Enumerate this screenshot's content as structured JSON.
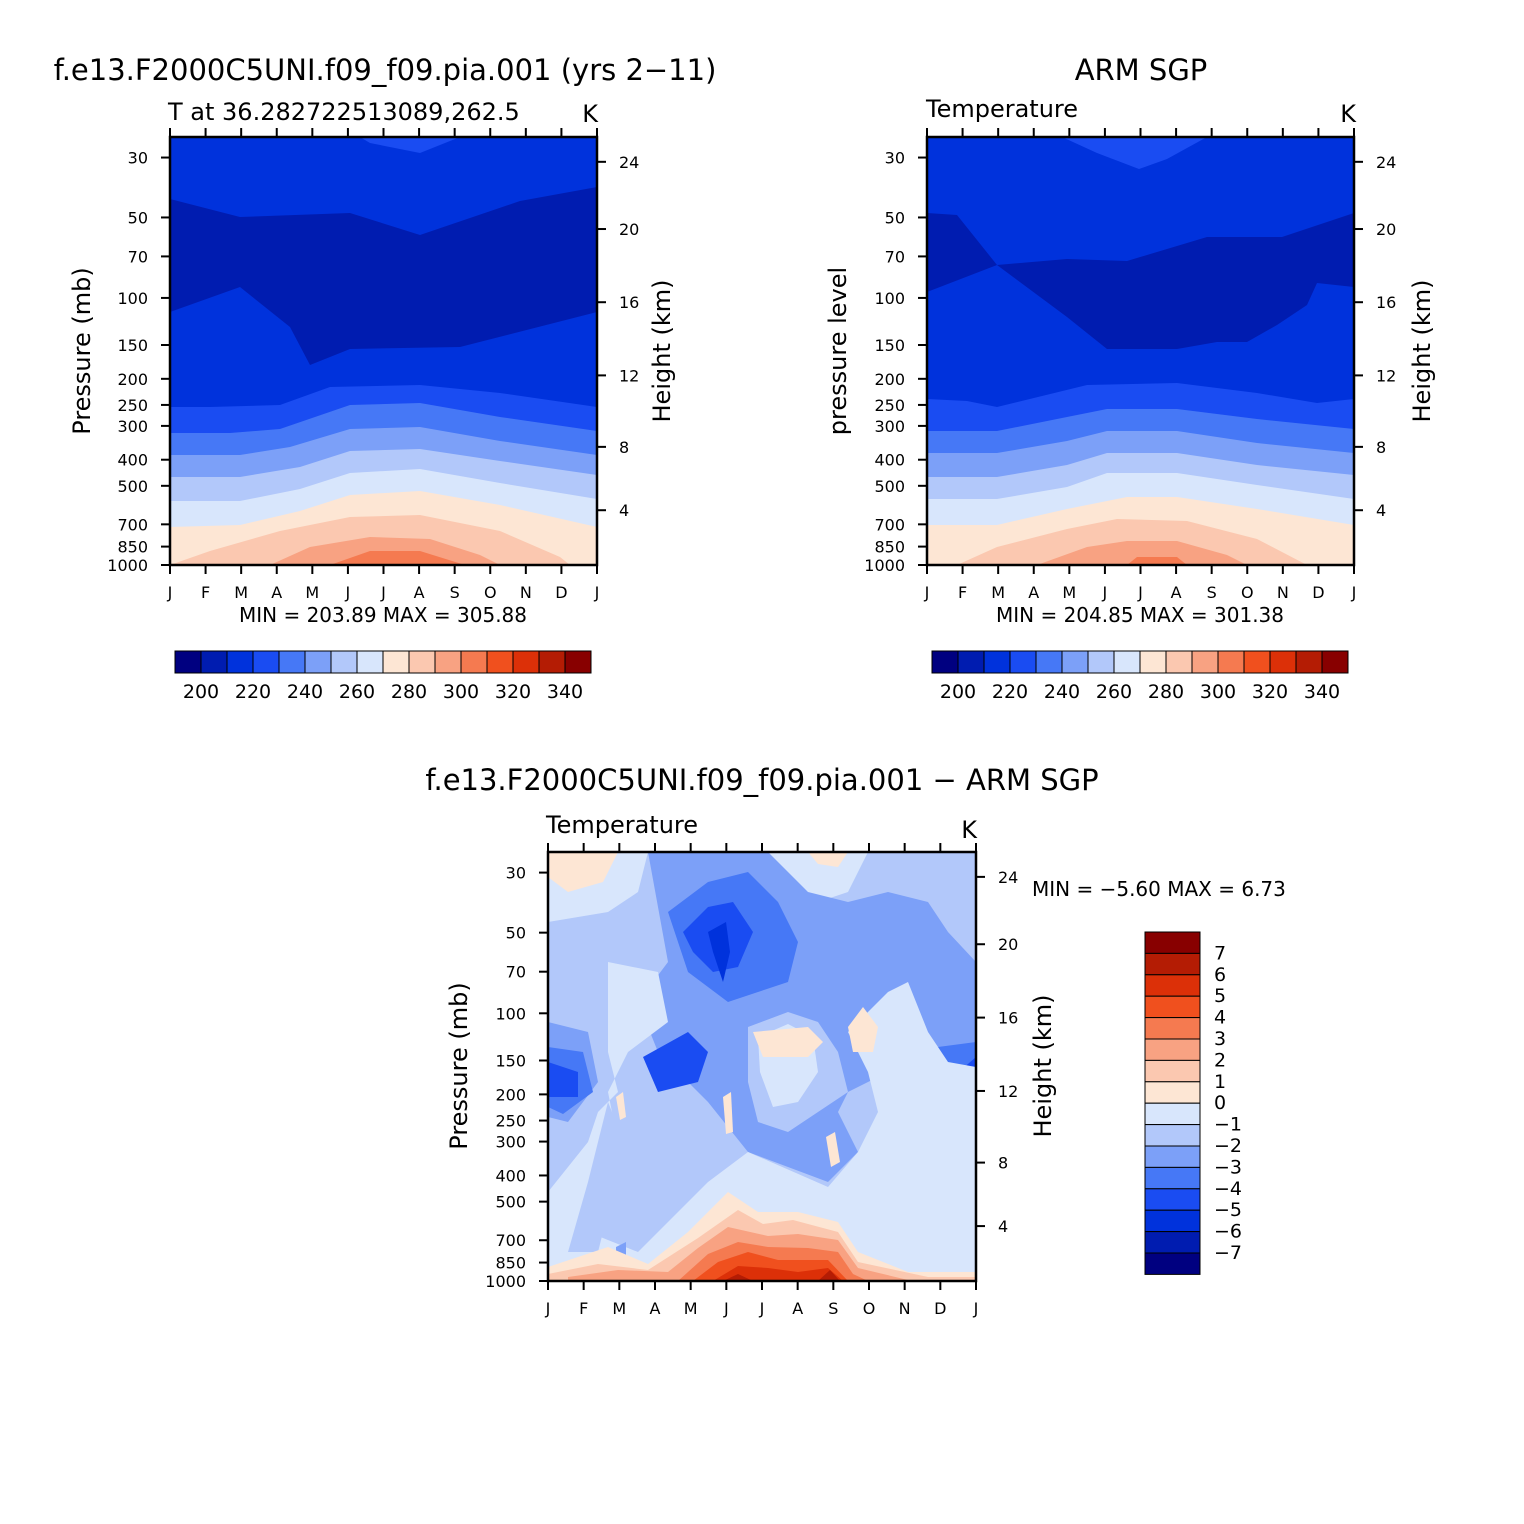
{
  "palette": [
    "#000080",
    "#001cb0",
    "#0032dc",
    "#1a4cf2",
    "#4678f6",
    "#7ca0f8",
    "#b2c8fa",
    "#d8e6fc",
    "#fde6d4",
    "#fbc8b0",
    "#f8a282",
    "#f57a50",
    "#f0501e",
    "#dc3008",
    "#b41c04",
    "#880000"
  ],
  "chart_data": [
    {
      "type": "heatmap",
      "title": "f.e13.F2000C5UNI.f09_f09.pia.001 (yrs 2−11)",
      "subtitle": "T at 36.282722513089,262.5",
      "units": "K",
      "ylabel": "Pressure (mb)",
      "y2label": "Height (km)",
      "x_ticks": [
        "J",
        "F",
        "M",
        "A",
        "M",
        "J",
        "J",
        "A",
        "S",
        "O",
        "N",
        "D",
        "J"
      ],
      "y_ticks": [
        "30",
        "50",
        "70",
        "100",
        "150",
        "200",
        "250",
        "300",
        "400",
        "500",
        "700",
        "850",
        "1000"
      ],
      "y2_ticks": [
        "24",
        "20",
        "16",
        "12",
        "8",
        "4"
      ],
      "stats": "MIN = 203.89 MAX = 305.88",
      "min": 203.89,
      "max": 305.88,
      "colorbar": {
        "orientation": "horizontal",
        "levels": [
          195,
          200,
          205,
          210,
          215,
          220,
          225,
          230,
          235,
          240,
          245,
          250,
          255,
          260,
          265,
          270,
          275,
          280,
          285,
          290,
          295,
          300,
          305,
          310,
          315,
          320,
          325,
          330,
          335,
          340,
          345
        ],
        "labels": [
          "200",
          "220",
          "240",
          "260",
          "280",
          "300",
          "320",
          "340"
        ]
      }
    },
    {
      "type": "heatmap",
      "title": "ARM SGP",
      "subtitle": "Temperature",
      "units": "K",
      "ylabel": "pressure level",
      "y2label": "Height (km)",
      "x_ticks": [
        "J",
        "F",
        "M",
        "A",
        "M",
        "J",
        "J",
        "A",
        "S",
        "O",
        "N",
        "D",
        "J"
      ],
      "y_ticks": [
        "30",
        "50",
        "70",
        "100",
        "150",
        "200",
        "250",
        "300",
        "400",
        "500",
        "700",
        "850",
        "1000"
      ],
      "y2_ticks": [
        "24",
        "20",
        "16",
        "12",
        "8",
        "4"
      ],
      "stats": "MIN = 204.85 MAX = 301.38",
      "min": 204.85,
      "max": 301.38,
      "colorbar": {
        "orientation": "horizontal",
        "levels": [
          195,
          200,
          205,
          210,
          215,
          220,
          225,
          230,
          235,
          240,
          245,
          250,
          255,
          260,
          265,
          270,
          275,
          280,
          285,
          290,
          295,
          300,
          305,
          310,
          315,
          320,
          325,
          330,
          335,
          340,
          345
        ],
        "labels": [
          "200",
          "220",
          "240",
          "260",
          "280",
          "300",
          "320",
          "340"
        ]
      }
    },
    {
      "type": "heatmap",
      "title": "f.e13.F2000C5UNI.f09_f09.pia.001 − ARM SGP",
      "subtitle": "Temperature",
      "units": "K",
      "ylabel": "Pressure (mb)",
      "y2label": "Height (km)",
      "x_ticks": [
        "J",
        "F",
        "M",
        "A",
        "M",
        "J",
        "J",
        "A",
        "S",
        "O",
        "N",
        "D",
        "J"
      ],
      "y_ticks": [
        "30",
        "50",
        "70",
        "100",
        "150",
        "200",
        "250",
        "300",
        "400",
        "500",
        "700",
        "850",
        "1000"
      ],
      "y2_ticks": [
        "24",
        "20",
        "16",
        "12",
        "8",
        "4"
      ],
      "stats": "MIN =   −5.60 MAX =     6.73",
      "min": -5.6,
      "max": 6.73,
      "colorbar": {
        "orientation": "vertical",
        "levels": [
          -7,
          -6,
          -5,
          -4,
          -3,
          -2,
          -1,
          0,
          1,
          2,
          3,
          4,
          5,
          6,
          7
        ],
        "labels": [
          "7",
          "6",
          "5",
          "4",
          "3",
          "2",
          "1",
          "0",
          "−1",
          "−2",
          "−3",
          "−4",
          "−5",
          "−6",
          "−7"
        ]
      }
    }
  ]
}
